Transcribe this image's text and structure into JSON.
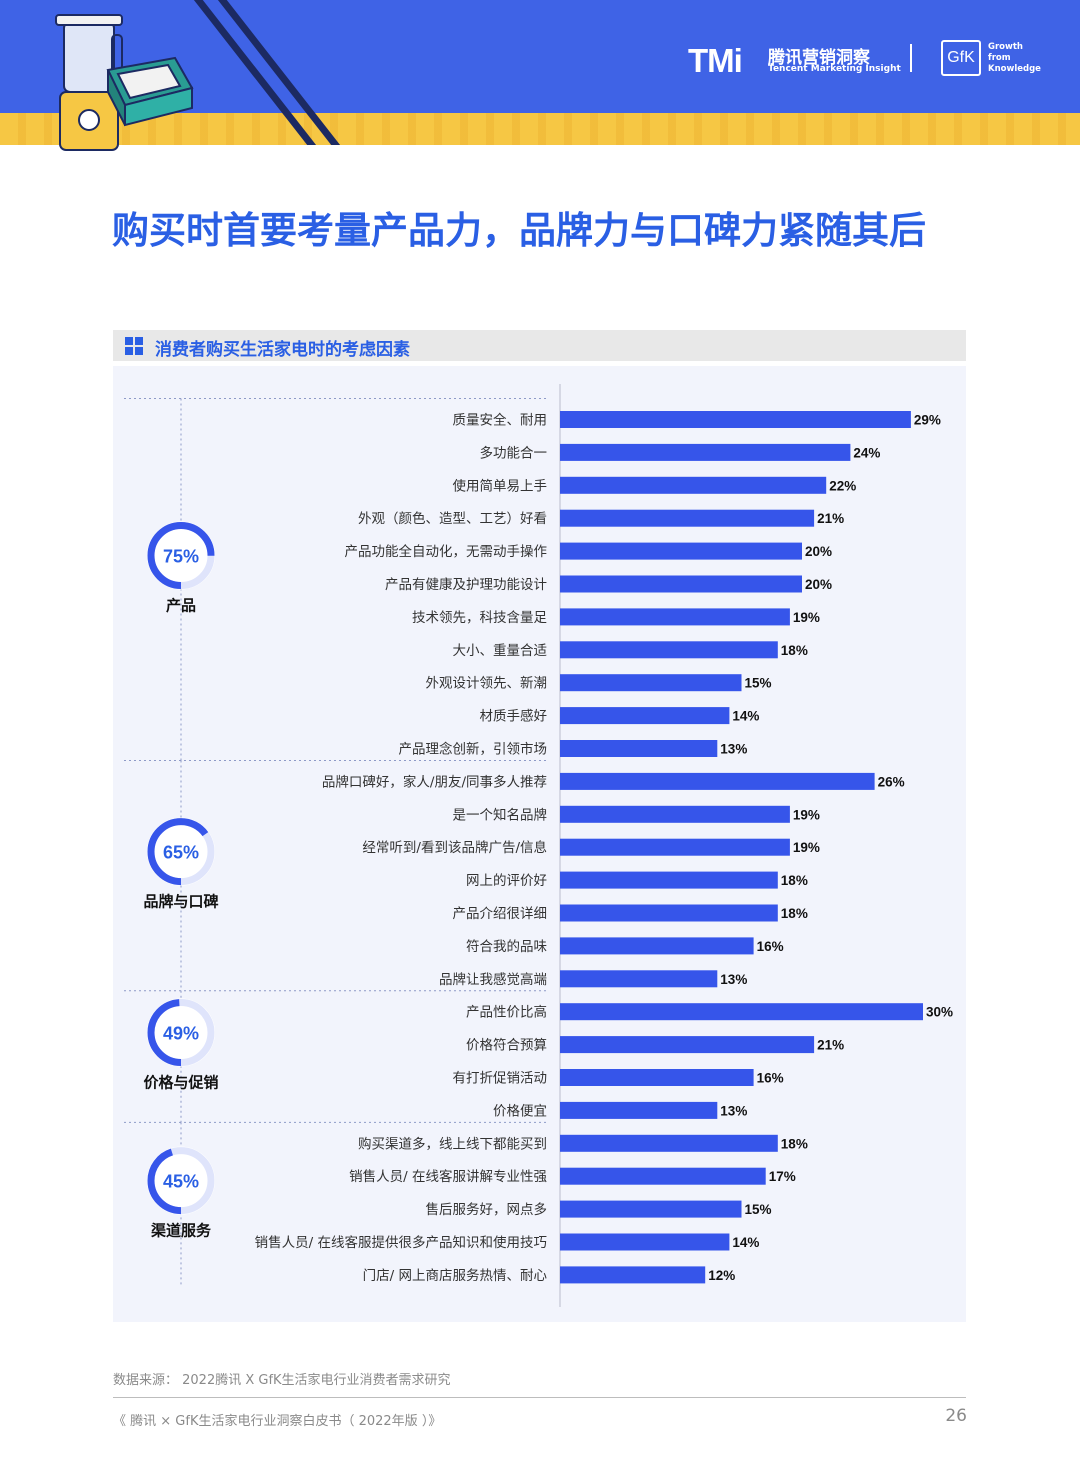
{
  "header": {
    "logo_tmi": "TMi",
    "logo_cn": "腾讯营销洞察",
    "logo_en": "Tencent Marketing Insight",
    "gfk_logo": "GfK",
    "gfk_tagline": [
      "Growth",
      "from",
      "Knowledge"
    ]
  },
  "title": "购买时首要考量产品力，品牌力与口碑力紧随其后",
  "panel_title": "消费者购买生活家电时的考虑因素",
  "colors": {
    "accent": "#2a5fe4",
    "bar": "#3655ea",
    "ring_track": "#dfe4fb",
    "panel_bg": "#f2f4fc"
  },
  "chart_data": {
    "type": "bar",
    "orientation": "horizontal",
    "unit": "%",
    "groups": [
      {
        "name": "产品",
        "total": "75%",
        "total_value": 75,
        "items": [
          {
            "label": "质量安全、耐用",
            "value": 29
          },
          {
            "label": "多功能合一",
            "value": 24
          },
          {
            "label": "使用简单易上手",
            "value": 22
          },
          {
            "label": "外观（颜色、造型、工艺）好看",
            "value": 21
          },
          {
            "label": "产品功能全自动化，无需动手操作",
            "value": 20
          },
          {
            "label": "产品有健康及护理功能设计",
            "value": 20
          },
          {
            "label": "技术领先，科技含量足",
            "value": 19
          },
          {
            "label": "大小、重量合适",
            "value": 18
          },
          {
            "label": "外观设计领先、新潮",
            "value": 15
          },
          {
            "label": "材质手感好",
            "value": 14
          },
          {
            "label": "产品理念创新，引领市场",
            "value": 13
          }
        ]
      },
      {
        "name": "品牌与口碑",
        "total": "65%",
        "total_value": 65,
        "items": [
          {
            "label": "品牌口碑好，家人/朋友/同事多人推荐",
            "value": 26
          },
          {
            "label": "是一个知名品牌",
            "value": 19
          },
          {
            "label": "经常听到/看到该品牌广告/信息",
            "value": 19
          },
          {
            "label": "网上的评价好",
            "value": 18
          },
          {
            "label": "产品介绍很详细",
            "value": 18
          },
          {
            "label": "符合我的品味",
            "value": 16
          },
          {
            "label": "品牌让我感觉高端",
            "value": 13
          }
        ]
      },
      {
        "name": "价格与促销",
        "total": "49%",
        "total_value": 49,
        "items": [
          {
            "label": "产品性价比高",
            "value": 30
          },
          {
            "label": "价格符合预算",
            "value": 21
          },
          {
            "label": "有打折促销活动",
            "value": 16
          },
          {
            "label": "价格便宜",
            "value": 13
          }
        ]
      },
      {
        "name": "渠道服务",
        "total": "45%",
        "total_value": 45,
        "items": [
          {
            "label": "购买渠道多，线上线下都能买到",
            "value": 18
          },
          {
            "label": "销售人员/ 在线客服讲解专业性强",
            "value": 17
          },
          {
            "label": "售后服务好，网点多",
            "value": 15
          },
          {
            "label": "销售人员/ 在线客服提供很多产品知识和使用技巧",
            "value": 14
          },
          {
            "label": "门店/ 网上商店服务热情、耐心",
            "value": 12
          }
        ]
      }
    ]
  },
  "source": "数据来源： 2022腾讯 X GfK生活家电行业消费者需求研究",
  "footer": "《 腾讯 × GfK生活家电行业洞察白皮书（ 2022年版 ）》",
  "page_number": "26"
}
